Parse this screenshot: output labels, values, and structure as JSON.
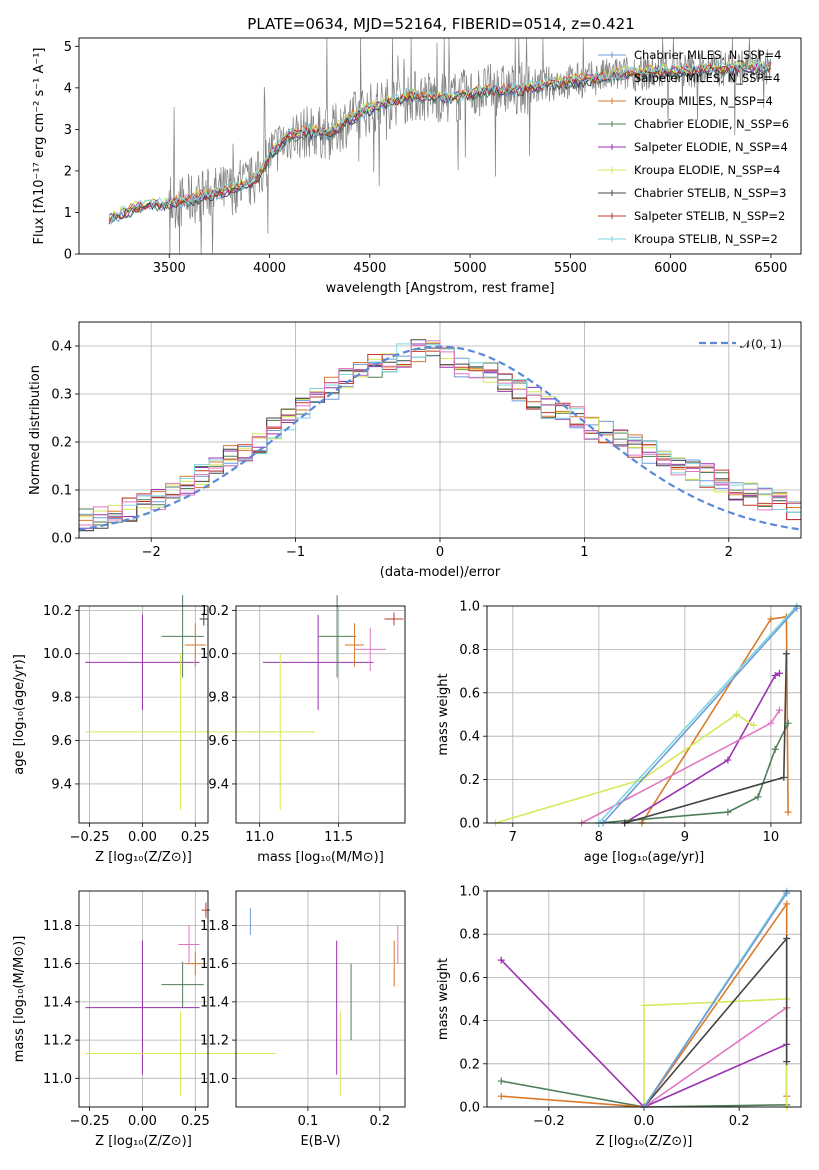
{
  "chart_data": [
    {
      "type": "line",
      "title": "PLATE=0634, MJD=52164, FIBERID=0514, z=0.421",
      "xlabel": "wavelength [Angstrom, rest frame]",
      "ylabel": "Flux [fλ10⁻¹⁷ erg cm⁻² s⁻¹ A⁻¹]",
      "xlim": [
        3050,
        6650
      ],
      "ylim": [
        0,
        5.2
      ],
      "xticks": [
        3500,
        4000,
        4500,
        5000,
        5500,
        6000,
        6500
      ],
      "yticks": [
        0,
        1,
        2,
        3,
        4,
        5
      ],
      "grid": false,
      "legend_position": "top-right",
      "series": [
        {
          "name": "Chabrier MILES, N_SSP=4",
          "color": "#6f9bd8"
        },
        {
          "name": "Salpeter MILES, N_SSP=4",
          "color": "#9ecae1"
        },
        {
          "name": "Kroupa MILES, N_SSP=4",
          "color": "#d97b2b"
        },
        {
          "name": "Chabrier ELODIE, N_SSP=6",
          "color": "#4f7f5a"
        },
        {
          "name": "Salpeter ELODIE, N_SSP=4",
          "color": "#9b30b0"
        },
        {
          "name": "Kroupa ELODIE, N_SSP=4",
          "color": "#d7e85a"
        },
        {
          "name": "Chabrier STELIB, N_SSP=3",
          "color": "#444444"
        },
        {
          "name": "Salpeter STELIB, N_SSP=2",
          "color": "#c0392b"
        },
        {
          "name": "Kroupa STELIB, N_SSP=2",
          "color": "#7fd6e0"
        }
      ],
      "data_color": "#808080",
      "continuum": {
        "x": [
          3200,
          3350,
          3500,
          3600,
          3700,
          3800,
          3900,
          3950,
          4000,
          4100,
          4200,
          4300,
          4400,
          4500,
          4600,
          4700,
          4800,
          4900,
          5000,
          5100,
          5200,
          5300,
          5400,
          5500,
          5600,
          5700,
          5800,
          6000,
          6200,
          6400,
          6500
        ],
        "y": [
          0.85,
          1.15,
          1.2,
          1.3,
          1.45,
          1.55,
          1.7,
          1.9,
          2.4,
          2.85,
          2.95,
          2.9,
          3.25,
          3.5,
          3.65,
          3.8,
          3.8,
          3.75,
          3.85,
          3.95,
          3.95,
          4.0,
          4.1,
          4.15,
          4.2,
          4.3,
          4.35,
          4.4,
          4.45,
          4.5,
          4.5
        ]
      }
    },
    {
      "type": "line",
      "xlabel": "(data-model)/error",
      "ylabel": "Normed distribution",
      "xlim": [
        -2.5,
        2.5
      ],
      "ylim": [
        0,
        0.45
      ],
      "xticks": [
        -2,
        -1,
        0,
        1,
        2
      ],
      "yticks": [
        0.0,
        0.1,
        0.2,
        0.3,
        0.4
      ],
      "grid": true,
      "legend_position": "top-right",
      "reference": {
        "name": "𝒩(0, 1)",
        "color": "#5b8ad6"
      },
      "hist_centers": [
        -2.45,
        -2.35,
        -2.25,
        -2.15,
        -2.05,
        -1.95,
        -1.85,
        -1.75,
        -1.65,
        -1.55,
        -1.45,
        -1.35,
        -1.25,
        -1.15,
        -1.05,
        -0.95,
        -0.85,
        -0.75,
        -0.65,
        -0.55,
        -0.45,
        -0.35,
        -0.25,
        -0.15,
        -0.05,
        0.05,
        0.15,
        0.25,
        0.35,
        0.45,
        0.55,
        0.65,
        0.75,
        0.85,
        0.95,
        1.05,
        1.15,
        1.25,
        1.35,
        1.45,
        1.55,
        1.65,
        1.75,
        1.85,
        1.95,
        2.05,
        2.15,
        2.25,
        2.35,
        2.45
      ],
      "hist_values": [
        0.04,
        0.045,
        0.05,
        0.06,
        0.07,
        0.08,
        0.09,
        0.11,
        0.13,
        0.15,
        0.17,
        0.18,
        0.2,
        0.23,
        0.25,
        0.27,
        0.29,
        0.31,
        0.33,
        0.35,
        0.36,
        0.37,
        0.38,
        0.39,
        0.39,
        0.38,
        0.36,
        0.35,
        0.34,
        0.33,
        0.31,
        0.29,
        0.27,
        0.26,
        0.25,
        0.23,
        0.22,
        0.2,
        0.19,
        0.18,
        0.17,
        0.15,
        0.14,
        0.13,
        0.12,
        0.1,
        0.09,
        0.08,
        0.07,
        0.06
      ]
    },
    {
      "type": "scatter",
      "xlabel": "Z [log₁₀(Z/Z⊙)]",
      "ylabel": "age  [log₁₀(age/yr)]",
      "xlim": [
        -0.3,
        0.31
      ],
      "ylim": [
        9.22,
        10.22
      ],
      "xticks": [
        -0.25,
        0.0,
        0.25
      ],
      "xtick_labels": [
        "−0.25",
        "0.00",
        "0.25"
      ],
      "yticks": [
        9.4,
        9.6,
        9.8,
        10.0,
        10.2
      ],
      "grid": true,
      "crosses": [
        {
          "x": 0.0,
          "xerr": 0.27,
          "y": 9.96,
          "yerr": 0.22,
          "color": "#9b30b0"
        },
        {
          "x": 0.18,
          "xerr": 0.45,
          "y": 9.64,
          "yerr": 0.36,
          "color": "#d7e85a"
        },
        {
          "x": 0.19,
          "xerr": 0.1,
          "y": 10.08,
          "yerr": 0.19,
          "color": "#4f7f5a"
        },
        {
          "x": 0.25,
          "xerr": 0.05,
          "y": 10.04,
          "yerr": 0.1,
          "color": "#d97b2b"
        },
        {
          "x": 0.29,
          "xerr": 0.02,
          "y": 10.16,
          "yerr": 0.03,
          "color": "#444444"
        }
      ]
    },
    {
      "type": "scatter",
      "xlabel": "mass [log₁₀(M/M⊙)]",
      "xlim": [
        10.85,
        11.92
      ],
      "ylim": [
        9.22,
        10.22
      ],
      "xticks": [
        11.0,
        11.5
      ],
      "xtick_labels": [
        "11.0",
        "11.5"
      ],
      "yticks": [
        9.4,
        9.6,
        9.8,
        10.0,
        10.2
      ],
      "grid": true,
      "crosses": [
        {
          "x": 11.37,
          "xerr": 0.35,
          "y": 9.96,
          "yerr": 0.22,
          "color": "#9b30b0"
        },
        {
          "x": 11.13,
          "xerr": 0.22,
          "y": 9.64,
          "yerr": 0.36,
          "color": "#d7e85a"
        },
        {
          "x": 11.49,
          "xerr": 0.12,
          "y": 10.08,
          "yerr": 0.19,
          "color": "#4f7f5a"
        },
        {
          "x": 11.6,
          "xerr": 0.06,
          "y": 10.04,
          "yerr": 0.1,
          "color": "#d97b2b"
        },
        {
          "x": 11.7,
          "xerr": 0.1,
          "y": 10.02,
          "yerr": 0.1,
          "color": "#e377c2"
        },
        {
          "x": 11.85,
          "xerr": 0.06,
          "y": 10.16,
          "yerr": 0.03,
          "color": "#c0392b"
        }
      ]
    },
    {
      "type": "line",
      "xlabel": "age  [log₁₀(age/yr)]",
      "ylabel": "mass weight",
      "xlim": [
        6.7,
        10.35
      ],
      "ylim": [
        0,
        1.0
      ],
      "xticks": [
        7,
        8,
        9,
        10
      ],
      "yticks": [
        0.0,
        0.2,
        0.4,
        0.6,
        0.8,
        1.0
      ],
      "grid": true,
      "series": [
        {
          "color": "#d97b2b",
          "x": [
            8.5,
            10.0,
            10.18,
            10.2
          ],
          "y": [
            0.0,
            0.94,
            0.95,
            0.05
          ]
        },
        {
          "color": "#9b30b0",
          "x": [
            8.3,
            9.5,
            10.05,
            10.1
          ],
          "y": [
            0.0,
            0.29,
            0.68,
            0.69
          ]
        },
        {
          "color": "#d7e85a",
          "x": [
            6.8,
            8.5,
            9.6,
            9.8
          ],
          "y": [
            0.0,
            0.2,
            0.5,
            0.45
          ]
        },
        {
          "color": "#e377c2",
          "x": [
            7.8,
            10.0,
            10.1
          ],
          "y": [
            0.0,
            0.46,
            0.52
          ]
        },
        {
          "color": "#4f7f5a",
          "x": [
            8.0,
            9.5,
            9.85,
            10.05,
            10.2
          ],
          "y": [
            0.0,
            0.05,
            0.12,
            0.34,
            0.46
          ]
        },
        {
          "color": "#444444",
          "x": [
            8.3,
            10.15,
            10.18
          ],
          "y": [
            0.0,
            0.21,
            0.78
          ]
        },
        {
          "color": "#7fd6e0",
          "x": [
            8.0,
            10.3
          ],
          "y": [
            0.0,
            1.0
          ]
        },
        {
          "color": "#6f9bd8",
          "x": [
            8.05,
            10.3
          ],
          "y": [
            0.0,
            0.99
          ]
        }
      ]
    },
    {
      "type": "scatter",
      "xlabel": "Z [log₁₀(Z/Z⊙)]",
      "ylabel": "mass [log₁₀(M/M⊙)]",
      "xlim": [
        -0.3,
        0.31
      ],
      "ylim": [
        10.85,
        11.98
      ],
      "xticks": [
        -0.25,
        0.0,
        0.25
      ],
      "xtick_labels": [
        "−0.25",
        "0.00",
        "0.25"
      ],
      "yticks": [
        11.0,
        11.2,
        11.4,
        11.6,
        11.8
      ],
      "grid": true,
      "crosses": [
        {
          "x": 0.0,
          "xerr": 0.27,
          "y": 11.37,
          "yerr": 0.35,
          "color": "#9b30b0"
        },
        {
          "x": 0.18,
          "xerr": 0.45,
          "y": 11.13,
          "yerr": 0.22,
          "color": "#d7e85a"
        },
        {
          "x": 0.19,
          "xerr": 0.1,
          "y": 11.49,
          "yerr": 0.12,
          "color": "#4f7f5a"
        },
        {
          "x": 0.25,
          "xerr": 0.05,
          "y": 11.6,
          "yerr": 0.06,
          "color": "#d97b2b"
        },
        {
          "x": 0.22,
          "xerr": 0.05,
          "y": 11.7,
          "yerr": 0.1,
          "color": "#e377c2"
        },
        {
          "x": 0.3,
          "xerr": 0.02,
          "y": 11.88,
          "yerr": 0.04,
          "color": "#c0392b"
        }
      ]
    },
    {
      "type": "scatter",
      "xlabel": "E(B-V)",
      "xlim": [
        0.0,
        0.235
      ],
      "ylim": [
        10.85,
        11.98
      ],
      "xticks": [
        0.1,
        0.2
      ],
      "xtick_labels": [
        "0.1",
        "0.2"
      ],
      "yticks": [
        11.0,
        11.2,
        11.4,
        11.6,
        11.8
      ],
      "grid": true,
      "bars": [
        {
          "x": 0.02,
          "y": 11.82,
          "yerr": 0.07,
          "color": "#6f9bd8"
        },
        {
          "x": 0.14,
          "y": 11.37,
          "yerr": 0.35,
          "color": "#9b30b0"
        },
        {
          "x": 0.145,
          "y": 11.13,
          "yerr": 0.22,
          "color": "#d7e85a"
        },
        {
          "x": 0.16,
          "y": 11.4,
          "yerr": 0.2,
          "color": "#4f7f5a"
        },
        {
          "x": 0.22,
          "y": 11.6,
          "yerr": 0.12,
          "color": "#d97b2b"
        },
        {
          "x": 0.225,
          "y": 11.7,
          "yerr": 0.1,
          "color": "#e377c2"
        }
      ]
    },
    {
      "type": "line",
      "xlabel": "Z [log₁₀(Z/Z⊙)]",
      "ylabel": "mass weight",
      "xlim": [
        -0.33,
        0.33
      ],
      "ylim": [
        0,
        1.0
      ],
      "xticks": [
        -0.2,
        0.0,
        0.2
      ],
      "xtick_labels": [
        "−0.2",
        "0.0",
        "0.2"
      ],
      "yticks": [
        0.0,
        0.2,
        0.4,
        0.6,
        0.8,
        1.0
      ],
      "grid": true,
      "series": [
        {
          "color": "#9b30b0",
          "x": [
            -0.3,
            0.0,
            0.3
          ],
          "y": [
            0.68,
            0.0,
            0.29
          ]
        },
        {
          "color": "#4f7f5a",
          "x": [
            -0.3,
            0.0,
            0.3,
            0.3
          ],
          "y": [
            0.12,
            0.0,
            0.01,
            0.46
          ]
        },
        {
          "color": "#d97b2b",
          "x": [
            -0.3,
            0.0,
            0.3,
            0.3
          ],
          "y": [
            0.05,
            0.0,
            0.94,
            0.05
          ]
        },
        {
          "color": "#d7e85a",
          "x": [
            0.0,
            0.0,
            0.3,
            0.3
          ],
          "y": [
            0.0,
            0.47,
            0.5,
            0.0
          ]
        },
        {
          "color": "#e377c2",
          "x": [
            0.0,
            0.3
          ],
          "y": [
            0.0,
            0.46
          ]
        },
        {
          "color": "#444444",
          "x": [
            0.0,
            0.3,
            0.3
          ],
          "y": [
            0.0,
            0.78,
            0.21
          ]
        },
        {
          "color": "#7fd6e0",
          "x": [
            0.0,
            0.3
          ],
          "y": [
            0.0,
            1.0
          ]
        },
        {
          "color": "#6f9bd8",
          "x": [
            0.0,
            0.3
          ],
          "y": [
            0.0,
            0.99
          ]
        }
      ]
    }
  ]
}
